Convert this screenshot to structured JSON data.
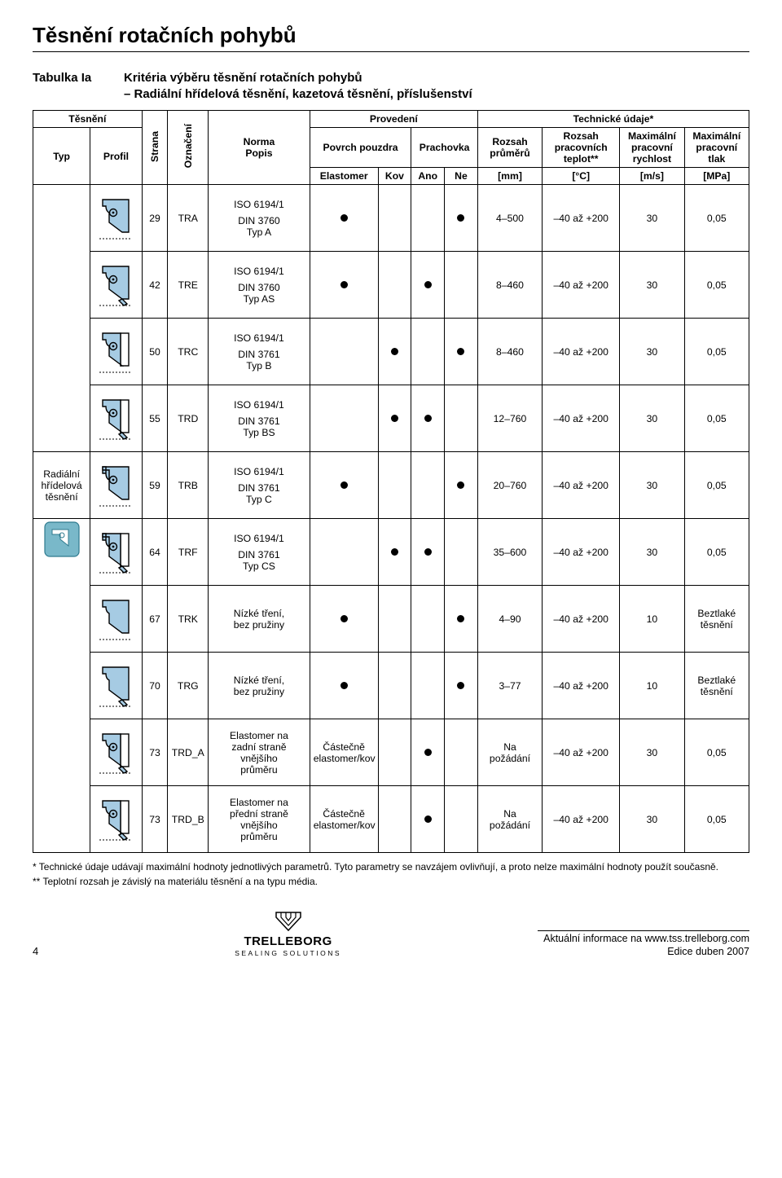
{
  "page": {
    "title": "Těsnění rotačních pohybů",
    "table_label": "Tabulka Ia",
    "criteria_line1": "Kritéria výběru těsnění rotačních pohybů",
    "criteria_line2": "– Radiální hřídelová těsnění, kazetová těsnění, příslušenství",
    "footnote_1": "*  Technické údaje udávají maximální hodnoty jednotlivých parametrů. Tyto parametry se navzájem ovlivňují, a proto nelze maximální hodnoty použít současně.",
    "footnote_2": "** Teplotní rozsah je závislý na materiálu těsnění a na typu média.",
    "page_number": "4",
    "brand": "TRELLEBORG",
    "brand_sub": "SEALING SOLUTIONS",
    "url_line": "Aktuální informace na www.tss.trelleborg.com",
    "edition": "Edice duben 2007"
  },
  "headers": {
    "tesneni": "Těsnění",
    "provedeni": "Provedení",
    "tech_udaje": "Technické údaje*",
    "typ": "Typ",
    "profil": "Profil",
    "strana": "Strana",
    "oznaceni": "Označení",
    "norma": "Norma\nPopis",
    "povrch": "Povrch pouzdra",
    "prachovka": "Prachovka",
    "rozsah_prum": "Rozsah\nprůměrů",
    "rozsah_tepl": "Rozsah\npracovních\nteplot**",
    "max_rychlost": "Maximální\npracovní\nrychlost",
    "max_tlak": "Maximální\npracovní\ntlak",
    "elastomer": "Elastomer",
    "kov": "Kov",
    "ano": "Ano",
    "ne": "Ne",
    "mm": "[mm]",
    "deg": "[°C]",
    "ms": "[m/s]",
    "mpa": "[MPa]"
  },
  "group": {
    "label": "Radiální\nhřídelová\ntěsnění"
  },
  "rows": [
    {
      "strana": "29",
      "ozn": "TRA",
      "iso": "ISO 6194/1",
      "din": "DIN 3760\nTyp A",
      "elast": true,
      "kov": false,
      "ano": false,
      "ne": true,
      "rozsah": "4–500",
      "teplo": "–40 až +200",
      "speed": "30",
      "tlak": "0,05"
    },
    {
      "strana": "42",
      "ozn": "TRE",
      "iso": "ISO 6194/1",
      "din": "DIN 3760\nTyp AS",
      "elast": true,
      "kov": false,
      "ano": true,
      "ne": false,
      "rozsah": "8–460",
      "teplo": "–40 až +200",
      "speed": "30",
      "tlak": "0,05"
    },
    {
      "strana": "50",
      "ozn": "TRC",
      "iso": "ISO 6194/1",
      "din": "DIN 3761\nTyp B",
      "elast": false,
      "kov": true,
      "ano": false,
      "ne": true,
      "rozsah": "8–460",
      "teplo": "–40 až +200",
      "speed": "30",
      "tlak": "0,05"
    },
    {
      "strana": "55",
      "ozn": "TRD",
      "iso": "ISO 6194/1",
      "din": "DIN 3761\nTyp BS",
      "elast": false,
      "kov": true,
      "ano": true,
      "ne": false,
      "rozsah": "12–760",
      "teplo": "–40 až +200",
      "speed": "30",
      "tlak": "0,05"
    },
    {
      "strana": "59",
      "ozn": "TRB",
      "iso": "ISO 6194/1",
      "din": "DIN 3761\nTyp C",
      "elast": true,
      "kov": false,
      "ano": false,
      "ne": true,
      "rozsah": "20–760",
      "teplo": "–40 až +200",
      "speed": "30",
      "tlak": "0,05"
    },
    {
      "strana": "64",
      "ozn": "TRF",
      "iso": "ISO 6194/1",
      "din": "DIN 3761\nTyp CS",
      "elast": false,
      "kov": true,
      "ano": true,
      "ne": false,
      "rozsah": "35–600",
      "teplo": "–40 až +200",
      "speed": "30",
      "tlak": "0,05"
    },
    {
      "strana": "67",
      "ozn": "TRK",
      "iso": "",
      "din": "Nízké tření,\nbez pružiny",
      "elast": true,
      "kov": false,
      "ano": false,
      "ne": true,
      "rozsah": "4–90",
      "teplo": "–40 až +200",
      "speed": "10",
      "tlak": "Beztlaké\ntěsnění"
    },
    {
      "strana": "70",
      "ozn": "TRG",
      "iso": "",
      "din": "Nízké tření,\nbez pružiny",
      "elast": true,
      "kov": false,
      "ano": false,
      "ne": true,
      "rozsah": "3–77",
      "teplo": "–40 až +200",
      "speed": "10",
      "tlak": "Beztlaké\ntěsnění"
    },
    {
      "strana": "73",
      "ozn": "TRD_A",
      "iso": "",
      "din": "Elastomer na\nzadní straně\nvnějšího\nprůměru",
      "elast_text": "Částečně\nelastomer/kov",
      "kov": false,
      "ano": true,
      "ne": false,
      "rozsah": "Na\npožádání",
      "teplo": "–40 až +200",
      "speed": "30",
      "tlak": "0,05"
    },
    {
      "strana": "73",
      "ozn": "TRD_B",
      "iso": "",
      "din": "Elastomer na\npřední straně\nvnějšího\nprůměru",
      "elast_text": "Částečně\nelastomer/kov",
      "kov": false,
      "ano": true,
      "ne": false,
      "rozsah": "Na\npožádání",
      "teplo": "–40 až +200",
      "speed": "30",
      "tlak": "0,05"
    }
  ],
  "colors": {
    "seal_fill": "#a6cbe3"
  }
}
